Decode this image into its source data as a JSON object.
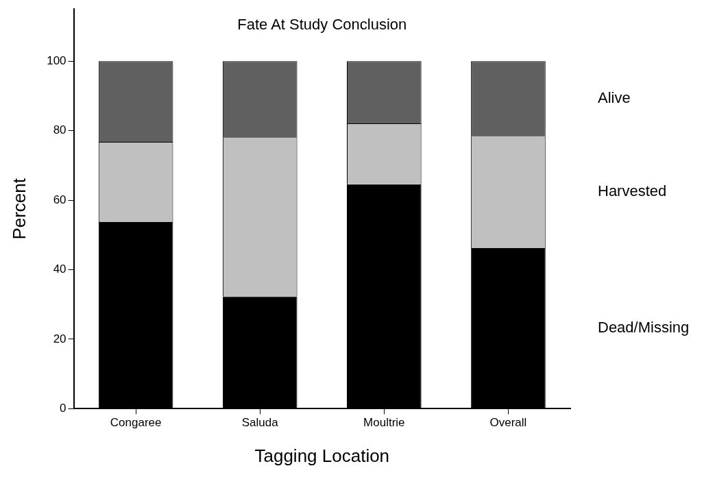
{
  "chart_data": {
    "type": "bar",
    "stacked": true,
    "title": "Fate At Study Conclusion",
    "xlabel": "Tagging Location",
    "ylabel": "Percent",
    "categories": [
      "Congaree",
      "Saluda",
      "Moultrie",
      "Overall"
    ],
    "series": [
      {
        "name": "Dead/Missing",
        "color": "#000000",
        "values": [
          53.7,
          32.3,
          64.6,
          46.2
        ]
      },
      {
        "name": "Harvested",
        "color": "#c0c0c0",
        "values": [
          23.1,
          45.8,
          17.5,
          32.3
        ]
      },
      {
        "name": "Alive",
        "color": "#606060",
        "values": [
          23.2,
          21.9,
          17.9,
          21.5
        ]
      }
    ],
    "ylim": [
      0,
      115
    ],
    "yticks": [
      0,
      20,
      40,
      60,
      80,
      100
    ],
    "grid": false,
    "legend": false
  }
}
